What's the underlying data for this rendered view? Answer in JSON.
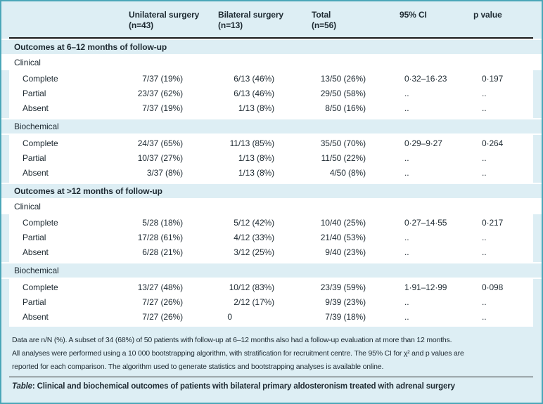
{
  "colors": {
    "frame_border": "#4aa6b8",
    "panel_background": "#ddeef4",
    "row_background": "#ffffff",
    "header_rule": "#1a1a1a",
    "text": "#1e2a32"
  },
  "table": {
    "columns": [
      {
        "label": "",
        "sub": ""
      },
      {
        "label": "Unilateral surgery",
        "sub": "(n=43)"
      },
      {
        "label": "Bilateral surgery",
        "sub": "(n=13)"
      },
      {
        "label": "Total",
        "sub": "(n=56)"
      },
      {
        "label": "95% CI",
        "sub": ""
      },
      {
        "label": "p value",
        "sub": ""
      }
    ],
    "sections": [
      {
        "title": "Outcomes at 6–12 months of follow-up",
        "groups": [
          {
            "name": "Clinical",
            "rows": [
              {
                "label": "Complete",
                "values": [
                  "7/37 (19%)",
                  "6/13 (46%)",
                  "13/50 (26%)",
                  "0·32–16·23",
                  "0·197"
                ]
              },
              {
                "label": "Partial",
                "values": [
                  "23/37 (62%)",
                  "6/13 (46%)",
                  "29/50 (58%)",
                  "..",
                  ".."
                ]
              },
              {
                "label": "Absent",
                "values": [
                  "7/37 (19%)",
                  "1/13 (8%)",
                  "8/50 (16%)",
                  "..",
                  ".."
                ]
              }
            ]
          },
          {
            "name": "Biochemical",
            "rows": [
              {
                "label": "Complete",
                "values": [
                  "24/37 (65%)",
                  "11/13 (85%)",
                  "35/50 (70%)",
                  "0·29–9·27",
                  "0·264"
                ]
              },
              {
                "label": "Partial",
                "values": [
                  "10/37 (27%)",
                  "1/13 (8%)",
                  "11/50 (22%)",
                  "..",
                  ".."
                ]
              },
              {
                "label": "Absent",
                "values": [
                  "3/37 (8%)",
                  "1/13 (8%)",
                  "4/50 (8%)",
                  "..",
                  ".."
                ]
              }
            ]
          }
        ]
      },
      {
        "title": "Outcomes at >12 months of follow-up",
        "groups": [
          {
            "name": "Clinical",
            "rows": [
              {
                "label": "Complete",
                "values": [
                  "5/28 (18%)",
                  "5/12 (42%)",
                  "10/40 (25%)",
                  "0·27–14·55",
                  "0·217"
                ]
              },
              {
                "label": "Partial",
                "values": [
                  "17/28 (61%)",
                  "4/12 (33%)",
                  "21/40 (53%)",
                  "..",
                  ".."
                ]
              },
              {
                "label": "Absent",
                "values": [
                  "6/28 (21%)",
                  "3/12 (25%)",
                  "9/40 (23%)",
                  "..",
                  ".."
                ]
              }
            ]
          },
          {
            "name": "Biochemical",
            "rows": [
              {
                "label": "Complete",
                "values": [
                  "13/27 (48%)",
                  "10/12 (83%)",
                  "23/39 (59%)",
                  "1·91–12·99",
                  "0·098"
                ]
              },
              {
                "label": "Partial",
                "values": [
                  "7/27 (26%)",
                  "2/12 (17%)",
                  "9/39 (23%)",
                  "..",
                  ".."
                ]
              },
              {
                "label": "Absent",
                "values": [
                  "7/27 (26%)",
                  "0",
                  "7/39 (18%)",
                  "..",
                  ".."
                ]
              }
            ]
          }
        ]
      }
    ],
    "footnotes": [
      "Data are n/N (%). A subset of 34 (68%) of 50 patients with follow-up at 6–12 months also had a follow-up evaluation at more than 12 months.",
      "All analyses were performed using a 10 000 bootstrapping algorithm, with stratification for recruitment centre. The 95% CI for χ² and p values are",
      "reported for each comparison. The algorithm used to generate statistics and bootstrapping analyses is available online."
    ],
    "caption": {
      "label": "Table",
      "text": ": Clinical and biochemical outcomes of patients with bilateral primary aldosteronism treated with adrenal surgery"
    }
  }
}
